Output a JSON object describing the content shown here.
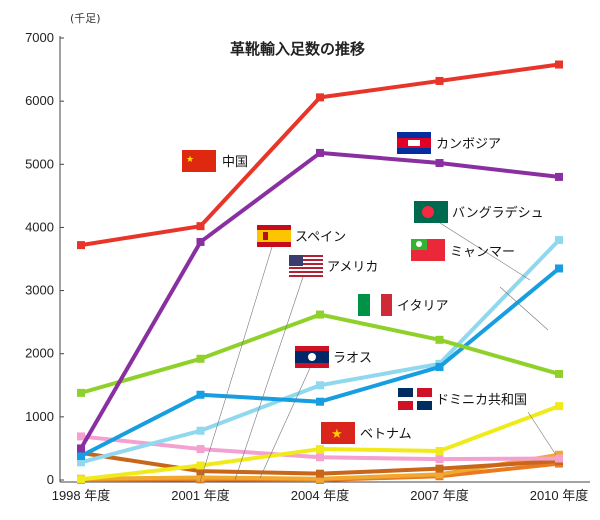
{
  "chart_data": {
    "type": "line",
    "title": "革靴輸入足数の推移",
    "unit": "(千足)",
    "categories": [
      "1998 年度",
      "2001 年度",
      "2004 年度",
      "2007 年度",
      "2010 年度"
    ],
    "ylim": [
      0,
      7000
    ],
    "yticks": [
      "0",
      "1000",
      "2000",
      "3000",
      "4000",
      "5000",
      "6000",
      "7000"
    ],
    "grid": false,
    "series": [
      {
        "name": "中国",
        "values": [
          3720,
          4020,
          6060,
          6320,
          6580
        ],
        "color": "#e8352a"
      },
      {
        "name": "カンボジア",
        "values": [
          500,
          3770,
          5180,
          5020,
          4800
        ],
        "color": "#8a2fa0"
      },
      {
        "name": "イタリア",
        "values": [
          1380,
          1920,
          2620,
          2220,
          1680
        ],
        "color": "#8fd12a"
      },
      {
        "name": "バングラデシュ",
        "values": [
          280,
          780,
          1500,
          1840,
          3800
        ],
        "color": "#8fd8f0"
      },
      {
        "name": "ミャンマー",
        "values": [
          380,
          1350,
          1240,
          1790,
          3350
        ],
        "color": "#169ee0"
      },
      {
        "name": "ベトナム",
        "values": [
          10,
          230,
          490,
          460,
          1170
        ],
        "color": "#f0ea1a"
      },
      {
        "name": "スペイン",
        "values": [
          690,
          490,
          360,
          330,
          340
        ],
        "color": "#f4a0d0"
      },
      {
        "name": "アメリカ",
        "values": [
          430,
          140,
          100,
          180,
          300
        ],
        "color": "#c8661a"
      },
      {
        "name": "ラオス",
        "values": [
          20,
          40,
          20,
          90,
          400
        ],
        "color": "#f0a830"
      },
      {
        "name": "ドミニカ共和国",
        "values": [
          0,
          10,
          0,
          60,
          260
        ],
        "color": "#e87a20"
      }
    ]
  }
}
